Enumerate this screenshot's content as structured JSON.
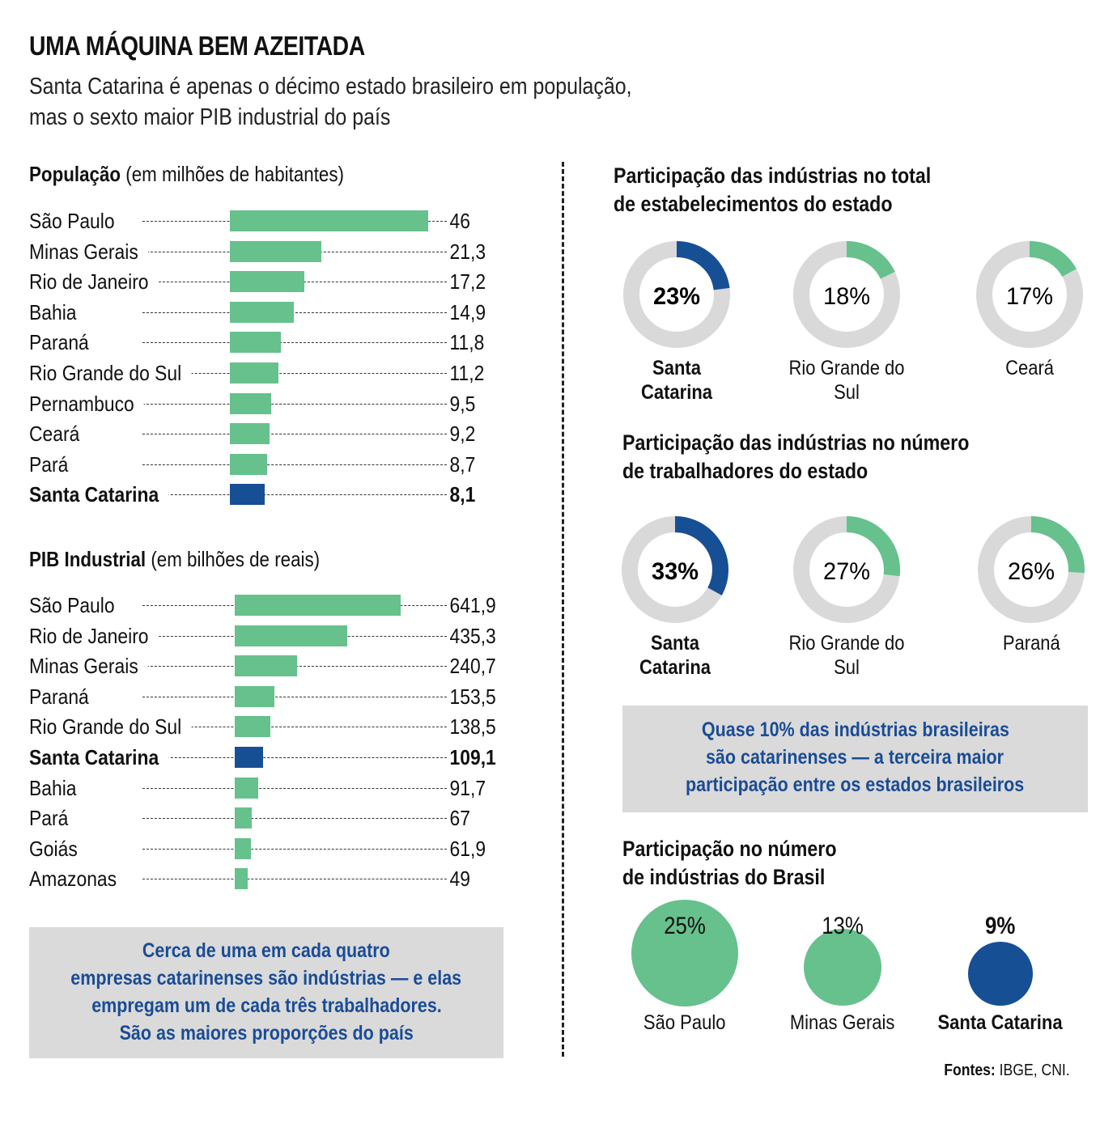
{
  "header": {
    "title": "UMA MÁQUINA BEM AZEITADA",
    "subtitle_lines": [
      "Santa Catarina é apenas o décimo estado brasileiro em população,",
      "mas o sexto maior PIB industrial do país"
    ]
  },
  "colors": {
    "green": "#66c18c",
    "blue": "#174f95",
    "track": "#d9d9d9",
    "note_bg": "#dadada",
    "note_text": "#1a4c94"
  },
  "population": {
    "title_bold": "População",
    "title_rest": " (em milhões de habitantes)"
  },
  "pib": {
    "title_bold": "PIB Industrial",
    "title_rest": " (em bilhões de reais)"
  },
  "left_note": {
    "lines": [
      "Cerca de uma em cada quatro",
      "empresas catarinenses são indústrias — e elas",
      "empregam um de cada três trabalhadores.",
      "São as maiores proporções do país"
    ]
  },
  "right": {
    "establishments_title": [
      "Participação das indústrias no total",
      "de estabelecimentos do estado"
    ],
    "workers_title": [
      "Participação das indústrias no número",
      "de trabalhadores do estado"
    ],
    "note_lines": [
      "Quase 10% das indústrias brasileiras",
      "são catarinenses — a terceira maior",
      "participação entre os estados brasileiros"
    ],
    "industries_title": [
      "Participação no número",
      "de indústrias do Brasil"
    ]
  },
  "sources": {
    "label": "Fontes:",
    "text": " IBGE, CNI."
  },
  "chart_data": [
    {
      "type": "bar",
      "orientation": "horizontal",
      "title": "População (em milhões de habitantes)",
      "categories": [
        "São Paulo",
        "Minas Gerais",
        "Rio de Janeiro",
        "Bahia",
        "Paraná",
        "Rio Grande do Sul",
        "Pernambuco",
        "Ceará",
        "Pará",
        "Santa Catarina"
      ],
      "values": [
        46,
        21.3,
        17.2,
        14.9,
        11.8,
        11.2,
        9.5,
        9.2,
        8.7,
        8.1
      ],
      "value_labels": [
        "46",
        "21,3",
        "17,2",
        "14,9",
        "11,8",
        "11,2",
        "9,5",
        "9,2",
        "8,7",
        "8,1"
      ],
      "highlight": "Santa Catarina",
      "xlim": [
        0,
        46
      ]
    },
    {
      "type": "bar",
      "orientation": "horizontal",
      "title": "PIB Industrial (em bilhões de reais)",
      "categories": [
        "São Paulo",
        "Rio de Janeiro",
        "Minas Gerais",
        "Paraná",
        "Rio Grande do Sul",
        "Santa Catarina",
        "Bahia",
        "Pará",
        "Goiás",
        "Amazonas"
      ],
      "values": [
        641.9,
        435.3,
        240.7,
        153.5,
        138.5,
        109.1,
        91.7,
        67,
        61.9,
        49
      ],
      "value_labels": [
        "641,9",
        "435,3",
        "240,7",
        "153,5",
        "138,5",
        "109,1",
        "91,7",
        "67",
        "61,9",
        "49"
      ],
      "highlight": "Santa Catarina",
      "xlim": [
        0,
        641.9
      ]
    },
    {
      "type": "pie",
      "variant": "donut",
      "title": "Participação das indústrias no total de estabelecimentos do estado",
      "items": [
        {
          "label": "Santa Catarina",
          "value": 23,
          "value_label": "23%",
          "highlight": true
        },
        {
          "label": "Rio Grande do Sul",
          "value": 18,
          "value_label": "18%",
          "highlight": false
        },
        {
          "label": "Ceará",
          "value": 17,
          "value_label": "17%",
          "highlight": false
        }
      ]
    },
    {
      "type": "pie",
      "variant": "donut",
      "title": "Participação das indústrias no número de trabalhadores do estado",
      "items": [
        {
          "label": "Santa Catarina",
          "value": 33,
          "value_label": "33%",
          "highlight": true
        },
        {
          "label": "Rio Grande do Sul",
          "value": 27,
          "value_label": "27%",
          "highlight": false
        },
        {
          "label": "Paraná",
          "value": 26,
          "value_label": "26%",
          "highlight": false
        }
      ]
    },
    {
      "type": "scatter",
      "variant": "bubble",
      "title": "Participação no número de indústrias do Brasil",
      "items": [
        {
          "label": "São Paulo",
          "value": 25,
          "value_label": "25%",
          "highlight": false
        },
        {
          "label": "Minas Gerais",
          "value": 13,
          "value_label": "13%",
          "highlight": false
        },
        {
          "label": "Santa Catarina",
          "value": 9,
          "value_label": "9%",
          "highlight": true
        }
      ]
    }
  ]
}
